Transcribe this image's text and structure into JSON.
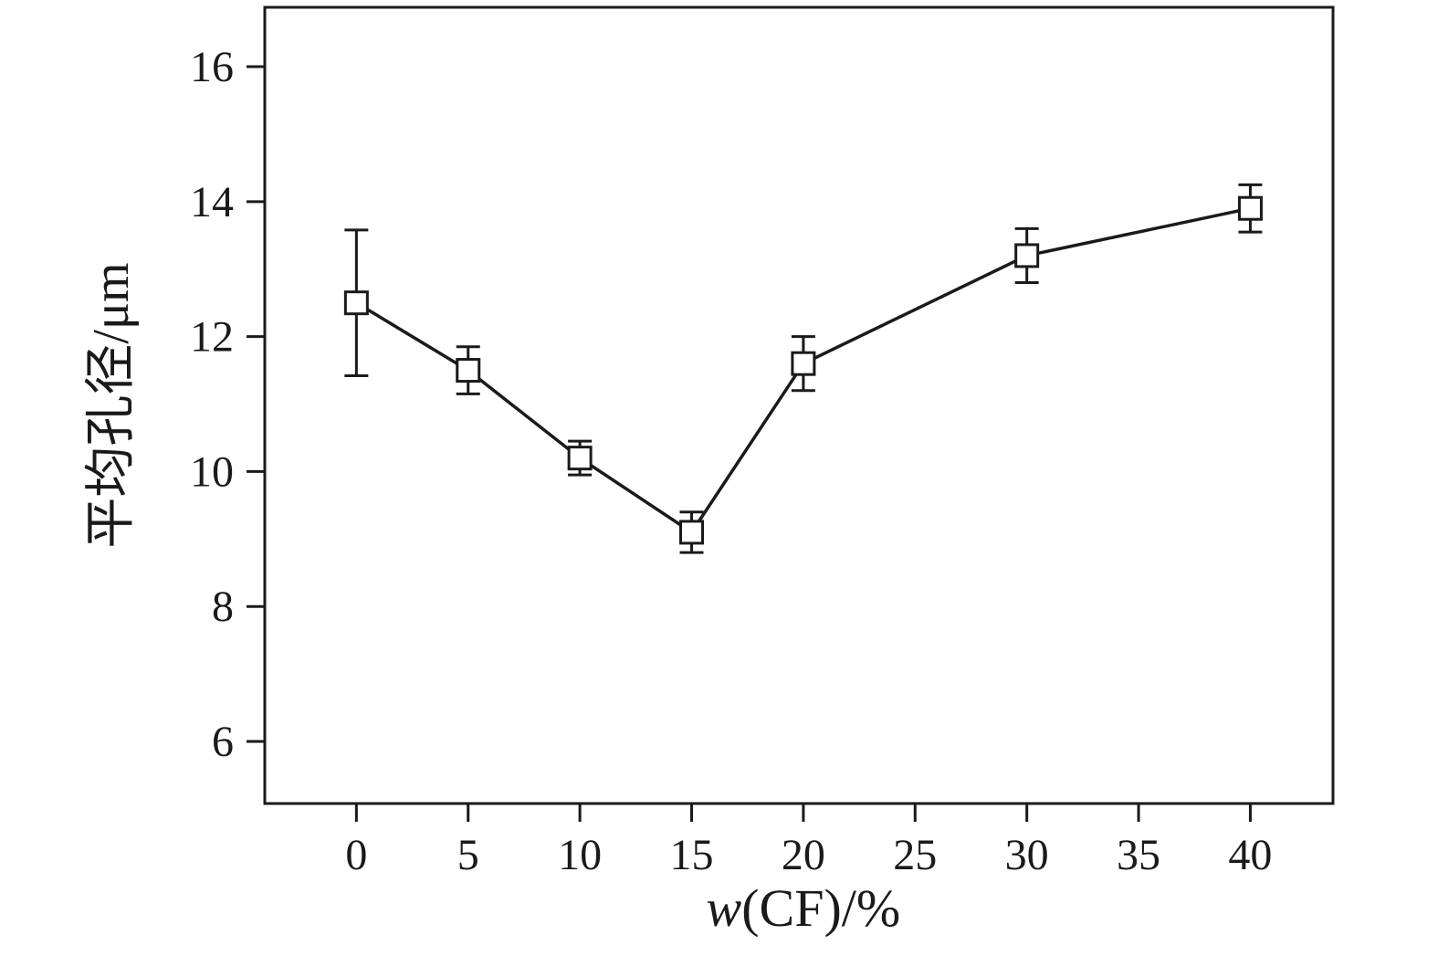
{
  "figure": {
    "background": "#ffffff"
  },
  "chart_data": {
    "type": "line",
    "title": "",
    "xlabel": "w(CF)/%",
    "xlabel_italic_prefix": "w",
    "xlabel_rest": "(CF)/%",
    "ylabel": "平均孔径/μm",
    "series": [
      {
        "name": "average-pore-diameter",
        "marker": "open-square",
        "x": [
          0,
          5,
          10,
          15,
          20,
          30,
          40
        ],
        "y": [
          12.5,
          11.5,
          10.2,
          9.1,
          11.6,
          13.2,
          13.9
        ],
        "yerr": [
          1.08,
          0.35,
          0.25,
          0.3,
          0.4,
          0.4,
          0.35
        ]
      }
    ],
    "xticks": [
      0,
      5,
      10,
      15,
      20,
      25,
      30,
      35,
      40
    ],
    "yticks": [
      6,
      8,
      10,
      12,
      14,
      16
    ],
    "xlim": [
      -4.1,
      43.7
    ],
    "ylim": [
      5.08,
      16.88
    ],
    "grid": false,
    "legend": "none",
    "line_color": "#1a1a1a",
    "marker_fill": "#ffffff",
    "frame": true
  }
}
